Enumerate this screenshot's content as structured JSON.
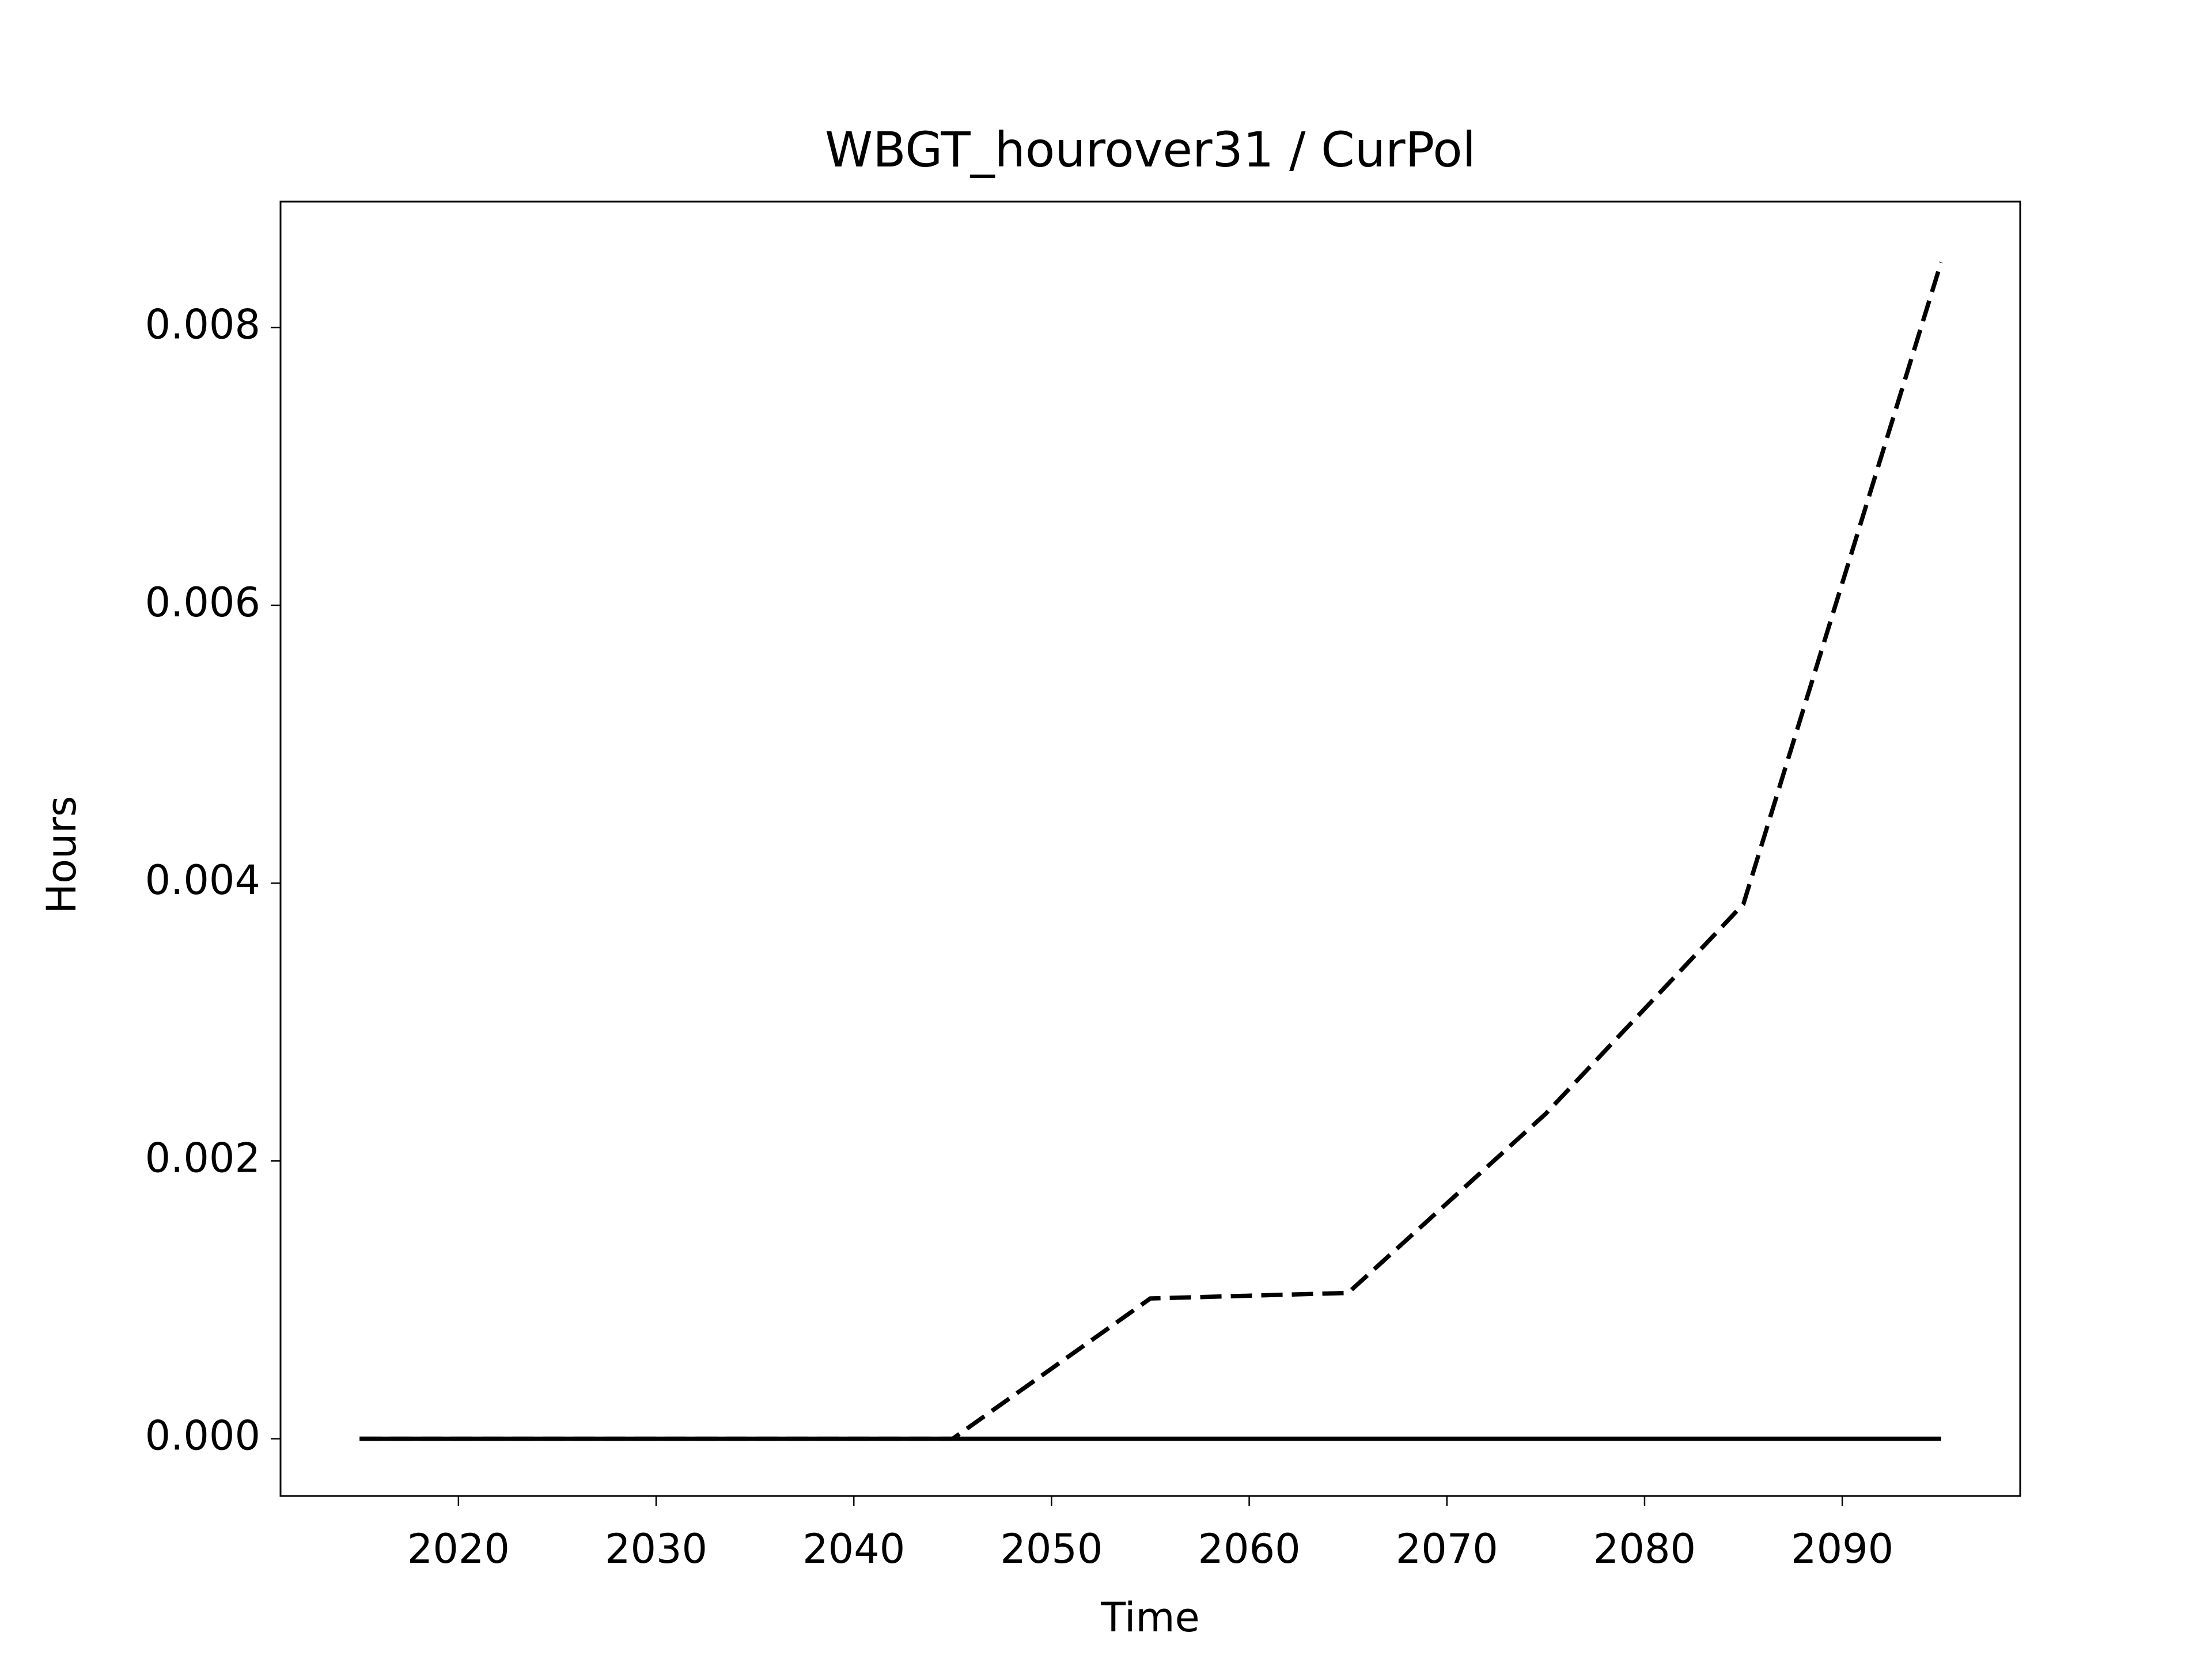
{
  "chart_data": {
    "type": "line",
    "title": "WBGT_hourover31 / CurPol",
    "x_label": "Time",
    "y_label": "Hours",
    "x": [
      2015,
      2025,
      2035,
      2045,
      2055,
      2065,
      2075,
      2085,
      2095
    ],
    "series": [
      {
        "color": "#000000",
        "style": "solid",
        "values": [
          0,
          0,
          0,
          0,
          0,
          0,
          0,
          0,
          0
        ]
      },
      {
        "color": "#000000",
        "style": "dashed",
        "values": [
          0,
          0,
          0,
          0,
          0.00101,
          0.00105,
          0.00234,
          0.00385,
          0.00847
        ]
      }
    ],
    "xlim": [
      2011,
      2099
    ],
    "ylim": [
      -0.000412,
      0.008907
    ],
    "xticks": [
      2020,
      2030,
      2040,
      2050,
      2060,
      2070,
      2080,
      2090
    ],
    "yticks": [
      {
        "value": 0,
        "label": "0.000"
      },
      0.002,
      0.004,
      0.006,
      0.008
    ],
    "grid": false
  }
}
